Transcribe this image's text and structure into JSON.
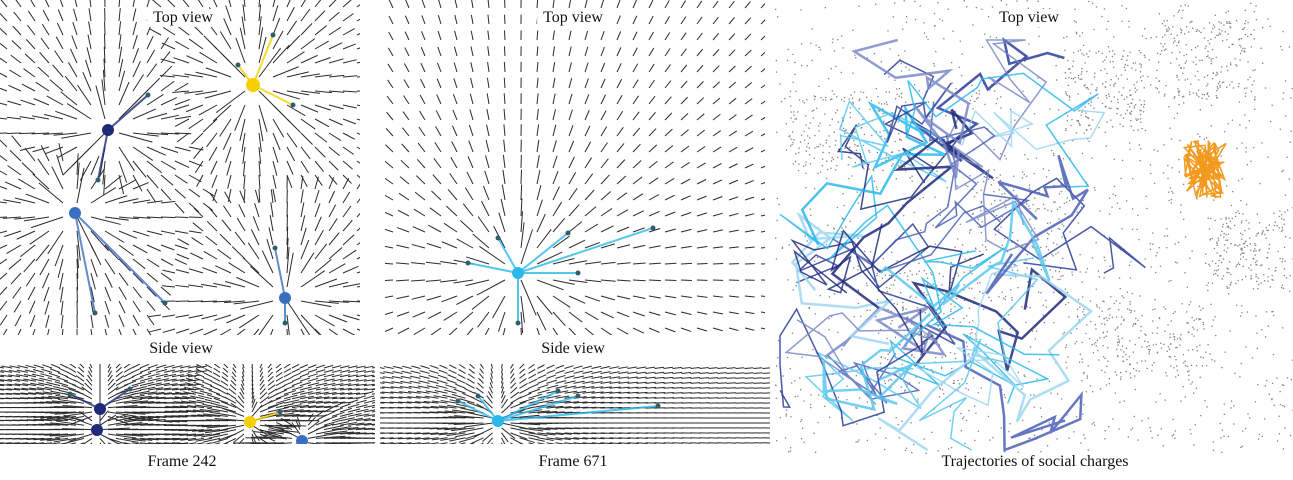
{
  "panels": [
    {
      "top_label": "Top view",
      "side_label": "Side view",
      "caption": "Frame 242"
    },
    {
      "top_label": "Top view",
      "side_label": "Side view",
      "caption": "Frame 671"
    },
    {
      "top_label": "Top view",
      "caption": "Trajectories of social charges"
    }
  ],
  "colors": {
    "field_lines": "#2b2b2b",
    "charge_navy": "#1f2a7a",
    "charge_blue": "#3a6fc0",
    "charge_yellow": "#f5d000",
    "charge_cyan": "#2ab8ec",
    "trajectory_orange": "#f39a1e",
    "point_cloud": "#808080"
  }
}
